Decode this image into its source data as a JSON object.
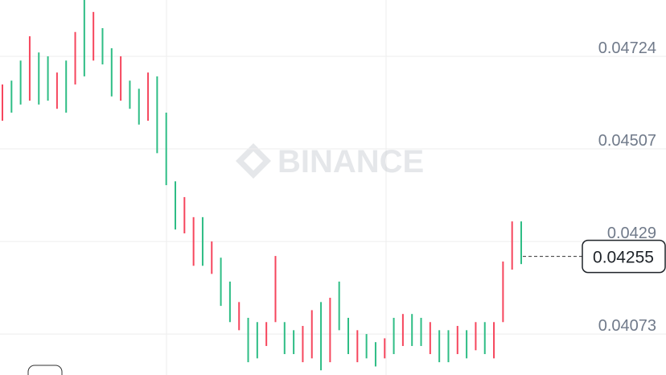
{
  "chart_data": {
    "type": "ohlc",
    "watermark": "BINANCE",
    "ylim": [
      0.03977,
      0.04856
    ],
    "yticks": [
      0.04073,
      0.0429,
      0.04507,
      0.04724
    ],
    "grid": true,
    "last_price": 0.04255,
    "up_color": "#2ebd85",
    "down_color": "#f6465d",
    "high": [
      0.04658,
      0.04667,
      0.04714,
      0.04771,
      0.04733,
      0.04724,
      0.04686,
      0.04714,
      0.04781,
      0.04856,
      0.04828,
      0.0479,
      0.04743,
      0.04724,
      0.04667,
      0.04648,
      0.04686,
      0.04677,
      0.04592,
      0.04431,
      0.04394,
      0.04347,
      0.04347,
      0.0429,
      0.04252,
      0.04196,
      0.04148,
      0.04111,
      0.04101,
      0.04101,
      0.04256,
      0.04101,
      0.04082,
      0.04092,
      0.04129,
      0.04148,
      0.04158,
      0.04196,
      0.04111,
      0.04082,
      0.04073,
      0.04054,
      0.04063,
      0.04111,
      0.0412,
      0.0412,
      0.04111,
      0.04101,
      0.04082,
      0.04082,
      0.04092,
      0.04082,
      0.04101,
      0.04101,
      0.04101,
      0.04243,
      0.04337,
      0.04337
    ],
    "low": [
      0.04573,
      0.04592,
      0.04611,
      0.0462,
      0.04611,
      0.0462,
      0.04601,
      0.04592,
      0.04658,
      0.04677,
      0.04714,
      0.04705,
      0.0463,
      0.0462,
      0.04601,
      0.04564,
      0.04573,
      0.04497,
      0.04422,
      0.04318,
      0.04309,
      0.04233,
      0.04233,
      0.04214,
      0.04139,
      0.04101,
      0.04082,
      0.04007,
      0.04016,
      0.04045,
      0.04101,
      0.04026,
      0.04026,
      0.04007,
      0.04016,
      0.03988,
      0.04007,
      0.04082,
      0.04026,
      0.04007,
      0.04016,
      0.03997,
      0.04016,
      0.04026,
      0.04045,
      0.04045,
      0.04045,
      0.04026,
      0.04007,
      0.04007,
      0.04026,
      0.04016,
      0.04035,
      0.04026,
      0.04016,
      0.04101,
      0.04224,
      0.04237
    ],
    "rising": [
      false,
      true,
      true,
      false,
      true,
      true,
      false,
      true,
      false,
      true,
      false,
      true,
      true,
      false,
      true,
      true,
      false,
      true,
      true,
      true,
      false,
      false,
      true,
      false,
      true,
      true,
      false,
      true,
      true,
      false,
      false,
      true,
      true,
      false,
      false,
      true,
      false,
      true,
      true,
      false,
      true,
      true,
      false,
      true,
      false,
      true,
      true,
      false,
      true,
      true,
      false,
      true,
      false,
      true,
      false,
      false,
      false,
      true
    ]
  }
}
